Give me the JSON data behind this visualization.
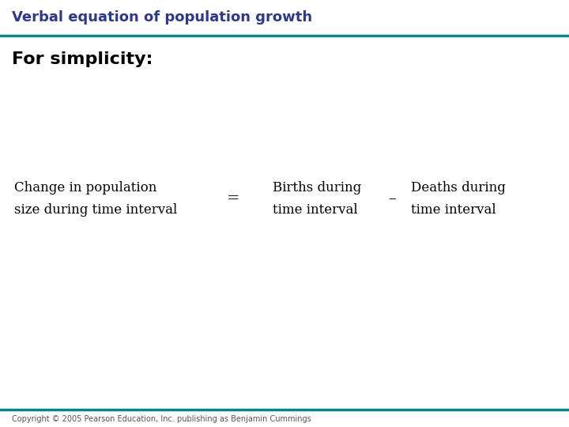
{
  "title": "Verbal equation of population growth",
  "title_color": "#2B3990",
  "title_fontsize": 13,
  "title_bold": true,
  "subtitle": "For simplicity:",
  "subtitle_fontsize": 16,
  "subtitle_bold": true,
  "subtitle_color": "#000000",
  "teal_line_color": "#008B8B",
  "background_color": "#ffffff",
  "equation": {
    "left_text_line1": "Change in population",
    "left_text_line2": "size during time interval",
    "equals": "=",
    "middle_text_line1": "Births during",
    "middle_text_line2": "time interval",
    "minus": "–",
    "right_text_line1": "Deaths during",
    "right_text_line2": "time interval"
  },
  "equation_fontsize": 12,
  "equation_color": "#000000",
  "operator_fontsize": 14,
  "copyright": "Copyright © 2005 Pearson Education, Inc. publishing as Benjamin Cummings",
  "copyright_fontsize": 7,
  "copyright_color": "#555555"
}
